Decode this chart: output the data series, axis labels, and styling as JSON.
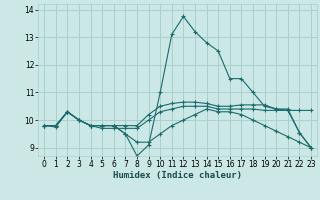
{
  "xlabel": "Humidex (Indice chaleur)",
  "xlim": [
    -0.5,
    23.5
  ],
  "ylim": [
    8.7,
    14.2
  ],
  "xticks": [
    0,
    1,
    2,
    3,
    4,
    5,
    6,
    7,
    8,
    9,
    10,
    11,
    12,
    13,
    14,
    15,
    16,
    17,
    18,
    19,
    20,
    21,
    22,
    23
  ],
  "yticks": [
    9,
    10,
    11,
    12,
    13,
    14
  ],
  "bg_color": "#cce8e6",
  "grid_color": "#aacfcc",
  "line_color": "#1a6b6b",
  "lines": [
    [
      9.8,
      9.8,
      10.3,
      10.0,
      9.8,
      9.8,
      9.8,
      9.5,
      8.7,
      9.1,
      11.0,
      13.1,
      13.75,
      13.2,
      12.8,
      12.5,
      11.5,
      11.5,
      11.0,
      10.5,
      10.4,
      10.4,
      9.55,
      9.0
    ],
    [
      9.8,
      9.8,
      10.3,
      10.0,
      9.8,
      9.8,
      9.8,
      9.8,
      9.8,
      10.2,
      10.5,
      10.6,
      10.65,
      10.65,
      10.6,
      10.5,
      10.5,
      10.55,
      10.55,
      10.55,
      10.4,
      10.35,
      10.35,
      10.35
    ],
    [
      9.8,
      9.8,
      10.3,
      10.0,
      9.8,
      9.8,
      9.8,
      9.5,
      9.2,
      9.2,
      9.5,
      9.8,
      10.0,
      10.2,
      10.4,
      10.3,
      10.3,
      10.2,
      10.0,
      9.8,
      9.6,
      9.4,
      9.2,
      9.0
    ],
    [
      9.8,
      9.75,
      10.3,
      10.0,
      9.8,
      9.7,
      9.7,
      9.7,
      9.7,
      10.0,
      10.3,
      10.4,
      10.5,
      10.5,
      10.5,
      10.4,
      10.4,
      10.4,
      10.4,
      10.35,
      10.35,
      10.35,
      9.55,
      9.0
    ]
  ]
}
